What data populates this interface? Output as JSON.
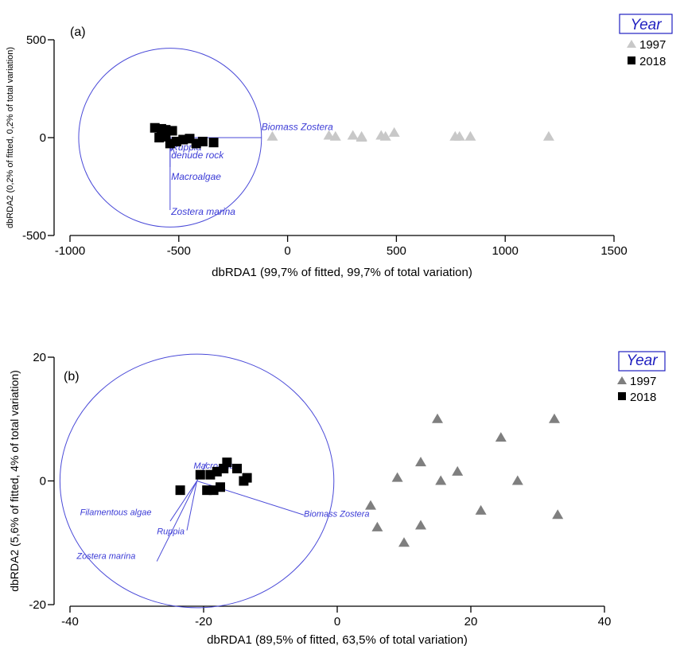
{
  "chart_data": [
    {
      "type": "scatter",
      "panel_label": "(a)",
      "xlabel": "dbRDA1 (99,7% of fitted, 99,7% of total variation)",
      "ylabel": "dbRDA2 (0,2% of fitted, 0,2% of total variation)",
      "xlim": [
        -1000,
        1500
      ],
      "ylim": [
        -500,
        500
      ],
      "xticks": [
        "-1000",
        "-500",
        "0",
        "500",
        "1000",
        "1500"
      ],
      "yticks": [
        "500",
        "0",
        "-500"
      ],
      "legend": {
        "title": "Year",
        "position": "top-right"
      },
      "series": [
        {
          "name": "1997",
          "marker": "triangle",
          "color": "#c8c8c8",
          "points": [
            [
              -70,
              5
            ],
            [
              190,
              10
            ],
            [
              220,
              5
            ],
            [
              300,
              10
            ],
            [
              340,
              5
            ],
            [
              340,
              0
            ],
            [
              430,
              10
            ],
            [
              450,
              5
            ],
            [
              490,
              25
            ],
            [
              770,
              5
            ],
            [
              790,
              5
            ],
            [
              840,
              5
            ],
            [
              1200,
              5
            ]
          ]
        },
        {
          "name": "2018",
          "marker": "square",
          "color": "#000000",
          "points": [
            [
              -610,
              50
            ],
            [
              -580,
              45
            ],
            [
              -560,
              40
            ],
            [
              -530,
              35
            ],
            [
              -590,
              0
            ],
            [
              -560,
              5
            ],
            [
              -540,
              -30
            ],
            [
              -510,
              -20
            ],
            [
              -480,
              -10
            ],
            [
              -450,
              -5
            ],
            [
              -420,
              -30
            ],
            [
              -390,
              -20
            ],
            [
              -340,
              -25
            ]
          ]
        }
      ],
      "circle": {
        "center": [
          -540,
          0
        ],
        "radius": 420
      },
      "vectors": [
        {
          "label": "Biomass Zostera",
          "end": [
            -120,
            0
          ],
          "label_pos": [
            -120,
            38
          ]
        },
        {
          "label": "Ruppia",
          "end": [
            -535,
            -70
          ],
          "label_pos": [
            -535,
            -65
          ]
        },
        {
          "label": "denude rock",
          "end": [
            -520,
            -80
          ],
          "label_pos": [
            -535,
            -105
          ]
        },
        {
          "label": "Macroalgae",
          "end": [
            -540,
            -150
          ],
          "label_pos": [
            -535,
            -215
          ]
        },
        {
          "label": "Zostera marina",
          "end": [
            -540,
            -370
          ],
          "label_pos": [
            -535,
            -395
          ]
        }
      ]
    },
    {
      "type": "scatter",
      "panel_label": "(b)",
      "xlabel": "dbRDA1 (89,5% of fitted, 63,5% of total variation)",
      "ylabel": "dbRDA2 (5,6% of fitted, 4% of total variation)",
      "xlim": [
        -40,
        40
      ],
      "ylim": [
        -20,
        20
      ],
      "xticks": [
        "-40",
        "-20",
        "0",
        "20",
        "40"
      ],
      "yticks": [
        "20",
        "0",
        "-20"
      ],
      "legend": {
        "title": "Year",
        "position": "top-right"
      },
      "series": [
        {
          "name": "1997",
          "marker": "triangle",
          "color": "#7f7f7f",
          "points": [
            [
              15,
              10
            ],
            [
              32.5,
              10
            ],
            [
              24.5,
              7
            ],
            [
              12.5,
              3
            ],
            [
              18,
              1.5
            ],
            [
              9,
              0.5
            ],
            [
              15.5,
              0
            ],
            [
              27,
              0
            ],
            [
              5,
              -4
            ],
            [
              6,
              -7.5
            ],
            [
              21.5,
              -4.8
            ],
            [
              12.5,
              -7.2
            ],
            [
              10,
              -10
            ],
            [
              33,
              -5.5
            ]
          ]
        },
        {
          "name": "2018",
          "marker": "square",
          "color": "#000000",
          "points": [
            [
              -16.5,
              3
            ],
            [
              -17,
              2
            ],
            [
              -15,
              2
            ],
            [
              -18,
              1.5
            ],
            [
              -19,
              1
            ],
            [
              -20.5,
              1
            ],
            [
              -13.5,
              0.5
            ],
            [
              -14,
              0
            ],
            [
              -17.5,
              -1
            ],
            [
              -19.5,
              -1.5
            ],
            [
              -18.5,
              -1.5
            ],
            [
              -23.5,
              -1.5
            ]
          ]
        }
      ],
      "circle": {
        "center": [
          -21,
          0
        ],
        "radius": 20.5
      },
      "vectors": [
        {
          "label": "Macroalgae",
          "end": [
            -19.5,
            3
          ],
          "label_pos": [
            -21.5,
            2
          ]
        },
        {
          "label": "Filamentous algae",
          "end": [
            -25,
            -6.5
          ],
          "label_pos": [
            -38.5,
            -5.5
          ]
        },
        {
          "label": "Ruppia",
          "end": [
            -22.5,
            -8
          ],
          "label_pos": [
            -27,
            -8.6
          ]
        },
        {
          "label": "Zostera marina",
          "end": [
            -27,
            -13
          ],
          "label_pos": [
            -39,
            -12.6
          ]
        },
        {
          "label": "Biomass Zostera",
          "end": [
            -5,
            -5.5
          ],
          "label_pos": [
            -5,
            -5.8
          ]
        }
      ]
    }
  ]
}
